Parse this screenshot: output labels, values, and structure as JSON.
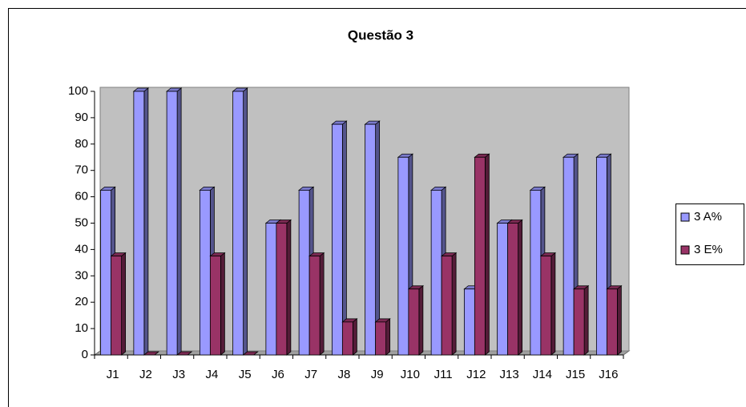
{
  "chart_data": {
    "type": "bar",
    "title": "Questão 3",
    "categories": [
      "J1",
      "J2",
      "J3",
      "J4",
      "J5",
      "J6",
      "J7",
      "J8",
      "J9",
      "J10",
      "J11",
      "J12",
      "J13",
      "J14",
      "J15",
      "J16"
    ],
    "series": [
      {
        "name": "3 A%",
        "color": "#9999ff",
        "values": [
          62.5,
          100,
          100,
          62.5,
          100,
          50,
          62.5,
          87.5,
          87.5,
          75,
          62.5,
          25,
          50,
          62.5,
          75,
          75
        ]
      },
      {
        "name": "3 E%",
        "color": "#993366",
        "values": [
          37.5,
          0,
          0,
          37.5,
          0,
          50,
          37.5,
          12.5,
          12.5,
          25,
          37.5,
          75,
          50,
          37.5,
          25,
          25
        ]
      }
    ],
    "ylim": [
      0,
      100
    ],
    "yticks": [
      0,
      10,
      20,
      30,
      40,
      50,
      60,
      70,
      80,
      90,
      100
    ],
    "grid": false,
    "legend": "right"
  }
}
